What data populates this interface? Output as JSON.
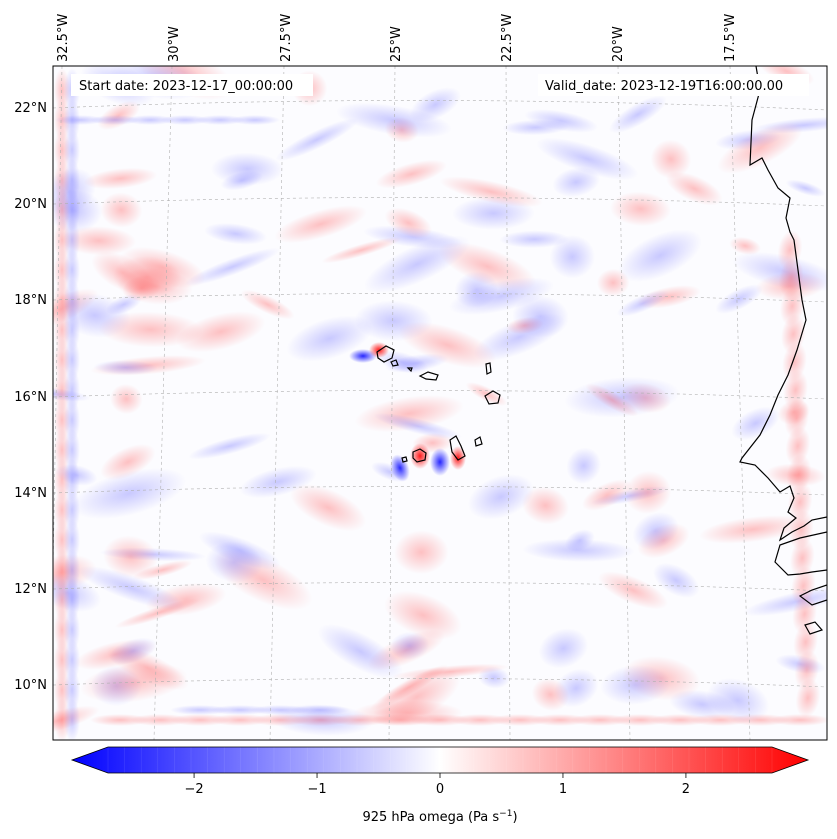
{
  "header": {
    "start_date": "Start date: 2023-12-17_00:00:00",
    "valid_date": "Valid_date: 2023-12-19T16:00:00.00"
  },
  "chart_data": {
    "type": "heatmap",
    "variable_label_main": "925 hPa omega (Pa s",
    "variable_label_unit_exp": "−1",
    "variable_label_close": ")",
    "colormap": "bwr",
    "colorbar": {
      "range": [
        -2.7,
        2.7
      ],
      "ticks": [
        -2,
        -1,
        0,
        1,
        2
      ],
      "tick_labels": [
        "−2",
        "−1",
        "0",
        "1",
        "2"
      ],
      "extend": "both",
      "orientation": "horizontal"
    },
    "lon_ticks": [
      "32.5°W",
      "30°W",
      "27.5°W",
      "25°W",
      "22.5°W",
      "20°W",
      "17.5°W"
    ],
    "lat_ticks": [
      "22°N",
      "20°N",
      "18°N",
      "16°N",
      "14°N",
      "12°N",
      "10°N"
    ],
    "lon_range": [
      -32.6,
      -15.2
    ],
    "lat_range": [
      8.9,
      22.8
    ],
    "gridlines": true,
    "region": "Cape Verde Islands and West African coast"
  },
  "colors": {
    "negative": "#0000ff",
    "zero": "#ffffff",
    "positive": "#ff0000",
    "coastline": "#000000",
    "gridline": "#b0b0b0"
  }
}
